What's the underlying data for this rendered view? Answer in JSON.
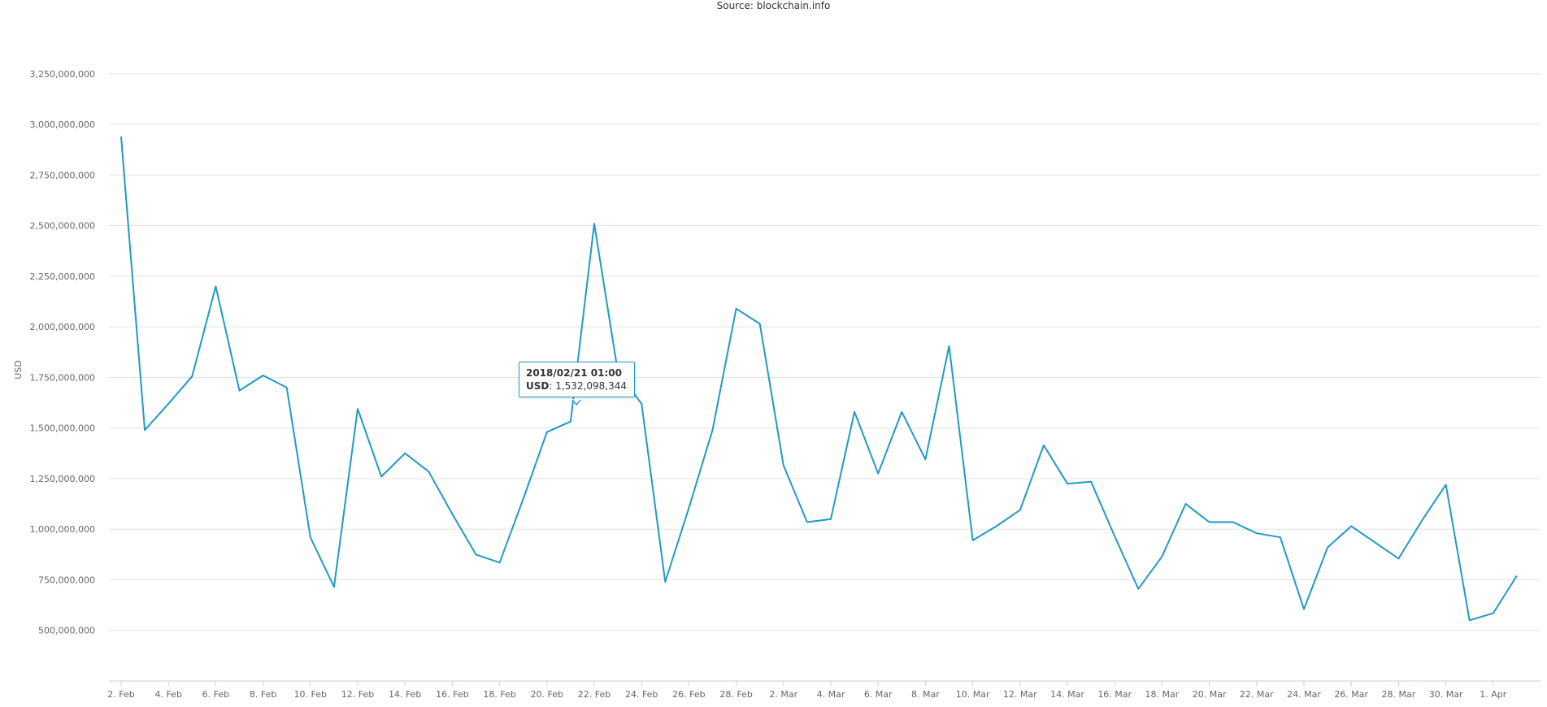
{
  "source_text": "Source: blockchain.info",
  "chart_data": {
    "type": "line",
    "ylabel": "USD",
    "xlabel": "",
    "title": "",
    "ylim": [
      250000000,
      3350000000
    ],
    "y_ticks": [
      500000000,
      750000000,
      1000000000,
      1250000000,
      1500000000,
      1750000000,
      2000000000,
      2250000000,
      2500000000,
      2750000000,
      3000000000,
      3250000000
    ],
    "y_tick_labels": [
      "500,000,000",
      "750,000,000",
      "1,000,000,000",
      "1,250,000,000",
      "1,500,000,000",
      "1,750,000,000",
      "2,000,000,000",
      "2,250,000,000",
      "2,500,000,000",
      "2,750,000,000",
      "3,000,000,000",
      "3,250,000,000"
    ],
    "x_tick_labels": [
      "2. Feb",
      "4. Feb",
      "6. Feb",
      "8. Feb",
      "10. Feb",
      "12. Feb",
      "14. Feb",
      "16. Feb",
      "18. Feb",
      "20. Feb",
      "22. Feb",
      "24. Feb",
      "26. Feb",
      "28. Feb",
      "2. Mar",
      "4. Mar",
      "6. Mar",
      "8. Mar",
      "10. Mar",
      "12. Mar",
      "14. Mar",
      "16. Mar",
      "18. Mar",
      "20. Mar",
      "22. Mar",
      "24. Mar",
      "26. Mar",
      "28. Mar",
      "30. Mar",
      "1. Apr"
    ],
    "x": [
      "2018-02-02",
      "2018-02-03",
      "2018-02-04",
      "2018-02-05",
      "2018-02-06",
      "2018-02-07",
      "2018-02-08",
      "2018-02-09",
      "2018-02-10",
      "2018-02-11",
      "2018-02-12",
      "2018-02-13",
      "2018-02-14",
      "2018-02-15",
      "2018-02-16",
      "2018-02-17",
      "2018-02-18",
      "2018-02-19",
      "2018-02-20",
      "2018-02-21",
      "2018-02-22",
      "2018-02-23",
      "2018-02-24",
      "2018-02-25",
      "2018-02-26",
      "2018-02-27",
      "2018-02-28",
      "2018-03-01",
      "2018-03-02",
      "2018-03-03",
      "2018-03-04",
      "2018-03-05",
      "2018-03-06",
      "2018-03-07",
      "2018-03-08",
      "2018-03-09",
      "2018-03-10",
      "2018-03-11",
      "2018-03-12",
      "2018-03-13",
      "2018-03-14",
      "2018-03-15",
      "2018-03-16",
      "2018-03-17",
      "2018-03-18",
      "2018-03-19",
      "2018-03-20",
      "2018-03-21",
      "2018-03-22",
      "2018-03-23",
      "2018-03-24",
      "2018-03-25",
      "2018-03-26",
      "2018-03-27",
      "2018-03-28",
      "2018-03-29",
      "2018-03-30",
      "2018-03-31",
      "2018-04-01",
      "2018-04-02"
    ],
    "series": [
      {
        "name": "USD",
        "values": [
          2940000000,
          1490000000,
          1620000000,
          1755000000,
          2200000000,
          1685000000,
          1760000000,
          1700000000,
          960000000,
          715000000,
          1595000000,
          1260000000,
          1375000000,
          1285000000,
          1075000000,
          875000000,
          835000000,
          1150000000,
          1480000000,
          1532098344,
          2510000000,
          1775000000,
          1620000000,
          740000000,
          1105000000,
          1490000000,
          2090000000,
          2015000000,
          1315000000,
          1035000000,
          1050000000,
          1580000000,
          1275000000,
          1580000000,
          1345000000,
          1905000000,
          945000000,
          1015000000,
          1095000000,
          1415000000,
          1225000000,
          1235000000,
          965000000,
          705000000,
          865000000,
          1125000000,
          1035000000,
          1035000000,
          980000000,
          960000000,
          605000000,
          910000000,
          1015000000,
          935000000,
          855000000,
          1045000000,
          1220000000,
          550000000,
          585000000,
          770000000
        ]
      }
    ],
    "line_color": "#1f9bc4",
    "grid": true,
    "legend": "none",
    "tooltip": {
      "date": "2018/02/21 01:00",
      "label": "USD",
      "value": "1,532,098,344"
    }
  }
}
